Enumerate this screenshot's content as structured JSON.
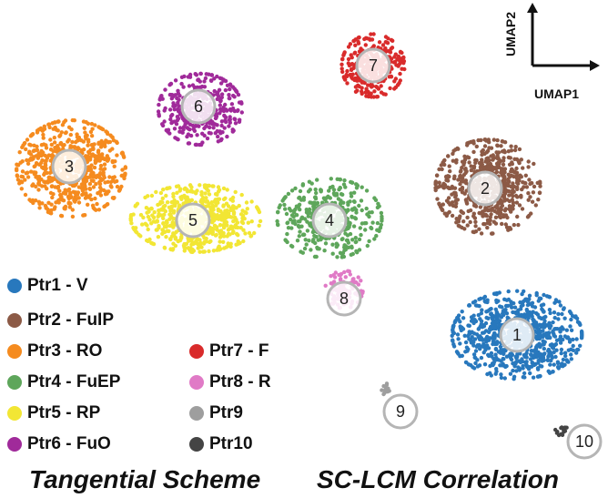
{
  "chart_data": {
    "type": "scatter",
    "plot": "UMAP embedding",
    "xlabel": "UMAP1",
    "ylabel": "UMAP2",
    "clusters": [
      {
        "id": "1",
        "name": "Ptr1 - V",
        "color": "#2878bd",
        "center": [
          568,
          368
        ],
        "spread": [
          62,
          42
        ],
        "n": 820
      },
      {
        "id": "2",
        "name": "Ptr2 - FuIP",
        "color": "#8c5a46",
        "center": [
          536,
          205
        ],
        "spread": [
          50,
          45
        ],
        "n": 620
      },
      {
        "id": "3",
        "name": "Ptr3 - RO",
        "color": "#f58b1f",
        "center": [
          78,
          185
        ],
        "spread": [
          52,
          46
        ],
        "n": 700
      },
      {
        "id": "4",
        "name": "Ptr4 - FuEP",
        "color": "#5ea65b",
        "center": [
          362,
          240
        ],
        "spread": [
          50,
          38
        ],
        "n": 430
      },
      {
        "id": "5",
        "name": "Ptr5 - RP",
        "color": "#f2e634",
        "center": [
          215,
          240
        ],
        "spread": [
          62,
          32
        ],
        "n": 620
      },
      {
        "id": "6",
        "name": "Ptr6 - FuO",
        "color": "#a02a9a",
        "center": [
          220,
          120
        ],
        "spread": [
          40,
          34
        ],
        "n": 380
      },
      {
        "id": "7",
        "name": "Ptr7 - F",
        "color": "#d92b2b",
        "center": [
          410,
          72
        ],
        "spread": [
          30,
          30
        ],
        "n": 330
      },
      {
        "id": "8",
        "name": "Ptr8 - R",
        "color": "#e07ac6",
        "center": [
          378,
          318
        ],
        "spread": [
          18,
          18
        ],
        "n": 110
      },
      {
        "id": "9",
        "name": "Ptr9",
        "color": "#9e9e9e",
        "center": [
          424,
          428
        ],
        "spread": [
          4,
          6
        ],
        "n": 14
      },
      {
        "id": "10",
        "name": "Ptr10",
        "color": "#444444",
        "center": [
          617,
          473
        ],
        "spread": [
          6,
          5
        ],
        "n": 16
      }
    ],
    "badges": [
      {
        "label": "1",
        "pos": [
          568,
          368
        ]
      },
      {
        "label": "2",
        "pos": [
          533,
          207
        ]
      },
      {
        "label": "3",
        "pos": [
          76,
          183
        ]
      },
      {
        "label": "4",
        "pos": [
          362,
          242
        ]
      },
      {
        "label": "5",
        "pos": [
          212,
          242
        ]
      },
      {
        "label": "6",
        "pos": [
          218,
          117
        ]
      },
      {
        "label": "7",
        "pos": [
          410,
          72
        ]
      },
      {
        "label": "8",
        "pos": [
          378,
          328
        ]
      },
      {
        "label": "9",
        "pos": [
          440,
          452
        ]
      },
      {
        "label": "10",
        "pos": [
          642,
          485
        ]
      }
    ],
    "legend": [
      {
        "label": "Ptr1 - V",
        "color": "#2878bd"
      },
      {
        "label": "Ptr2 - FuIP",
        "color": "#8c5a46"
      },
      {
        "label": "Ptr3 - RO",
        "color": "#f58b1f"
      },
      {
        "label": "Ptr4 - FuEP",
        "color": "#5ea65b"
      },
      {
        "label": "Ptr5 - RP",
        "color": "#f2e634"
      },
      {
        "label": "Ptr6 - FuO",
        "color": "#a02a9a"
      },
      {
        "label": "Ptr7 - F",
        "color": "#d92b2b"
      },
      {
        "label": "Ptr8 - R",
        "color": "#e07ac6"
      },
      {
        "label": "Ptr9",
        "color": "#9e9e9e"
      },
      {
        "label": "Ptr10",
        "color": "#444444"
      }
    ],
    "legend_placement": "bottom-left",
    "grid": false
  },
  "captions": {
    "left": "Tangential Scheme",
    "right": "SC-LCM Correlation"
  }
}
